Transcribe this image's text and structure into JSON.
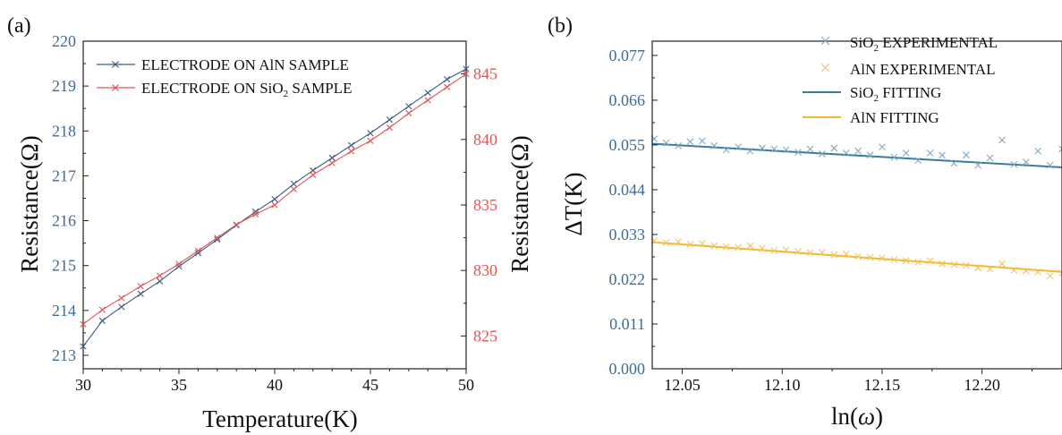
{
  "chart_data": [
    {
      "panel_label": "(a)",
      "type": "line",
      "xlabel": "Temperature(K)",
      "ylabel": "Resistance(Ω)",
      "y2label": "Resistance(Ω)",
      "xlim": [
        30,
        50
      ],
      "ylim": [
        212.7,
        220
      ],
      "y2lim": [
        822.5,
        847.5
      ],
      "xticks": [
        30,
        35,
        40,
        45,
        50
      ],
      "yticks": [
        213,
        214,
        215,
        216,
        217,
        218,
        219,
        220
      ],
      "y2ticks": [
        825,
        830,
        835,
        840,
        845
      ],
      "legend_position": "top-left",
      "series": [
        {
          "name": "ELECTRODE ON AlN SAMPLE",
          "axis": "left",
          "color": "#3d5a80",
          "x": [
            30,
            31,
            32,
            33,
            34,
            35,
            36,
            37,
            38,
            39,
            40,
            41,
            42,
            43,
            44,
            45,
            46,
            47,
            48,
            49,
            50
          ],
          "y": [
            213.2,
            213.77,
            214.08,
            214.37,
            214.65,
            214.98,
            215.28,
            215.58,
            215.9,
            216.2,
            216.48,
            216.82,
            217.12,
            217.4,
            217.68,
            217.95,
            218.25,
            218.55,
            218.85,
            219.15,
            219.38
          ]
        },
        {
          "name": "ELECTRODE ON SiO2 SAMPLE",
          "axis": "right",
          "color": "#e05555",
          "x": [
            30,
            31,
            32,
            33,
            34,
            35,
            36,
            37,
            38,
            39,
            40,
            41,
            42,
            43,
            44,
            45,
            46,
            47,
            48,
            49,
            50
          ],
          "y": [
            825.9,
            827.0,
            827.9,
            828.8,
            829.6,
            830.5,
            831.5,
            832.5,
            833.5,
            834.3,
            835.0,
            836.2,
            837.3,
            838.2,
            839.1,
            839.9,
            840.9,
            842.0,
            843.0,
            844.0,
            845.0
          ]
        }
      ]
    },
    {
      "panel_label": "(b)",
      "type": "scatter",
      "xlabel": "ln(ω)",
      "ylabel": "ΔT(K)",
      "xlim": [
        12.035,
        12.24
      ],
      "ylim": [
        0,
        0.0805
      ],
      "xticks": [
        "12.05",
        "12.10",
        "12.15",
        "12.20"
      ],
      "yticks": [
        "0.000",
        "0.011",
        "0.022",
        "0.033",
        "0.044",
        "0.055",
        "0.066",
        "0.077"
      ],
      "legend_position": "top-right",
      "series": [
        {
          "name": "SiO2 EXPERIMENTAL",
          "kind": "markers",
          "color": "#7fa8c4",
          "x": [
            12.036,
            12.042,
            12.048,
            12.054,
            12.06,
            12.066,
            12.072,
            12.078,
            12.084,
            12.09,
            12.096,
            12.102,
            12.108,
            12.114,
            12.12,
            12.126,
            12.132,
            12.138,
            12.144,
            12.15,
            12.156,
            12.162,
            12.168,
            12.174,
            12.18,
            12.186,
            12.192,
            12.198,
            12.204,
            12.21,
            12.216,
            12.222,
            12.228,
            12.234,
            12.24
          ],
          "y": [
            0.0565,
            0.0555,
            0.0548,
            0.0558,
            0.056,
            0.0548,
            0.0538,
            0.0545,
            0.0535,
            0.0542,
            0.054,
            0.0538,
            0.0532,
            0.054,
            0.0528,
            0.0542,
            0.053,
            0.0535,
            0.0525,
            0.0545,
            0.052,
            0.053,
            0.0512,
            0.053,
            0.0525,
            0.0505,
            0.0525,
            0.05,
            0.0518,
            0.0562,
            0.0502,
            0.0508,
            0.0535,
            0.05,
            0.054
          ]
        },
        {
          "name": "AlN EXPERIMENTAL",
          "kind": "markers",
          "color": "#f7c35a",
          "x": [
            12.036,
            12.042,
            12.048,
            12.054,
            12.06,
            12.066,
            12.072,
            12.078,
            12.084,
            12.09,
            12.096,
            12.102,
            12.108,
            12.114,
            12.12,
            12.126,
            12.132,
            12.138,
            12.144,
            12.15,
            12.156,
            12.162,
            12.168,
            12.174,
            12.18,
            12.186,
            12.192,
            12.198,
            12.204,
            12.21,
            12.216,
            12.222,
            12.228,
            12.234,
            12.24
          ],
          "y": [
            0.0315,
            0.031,
            0.0312,
            0.0306,
            0.0308,
            0.0302,
            0.03,
            0.0298,
            0.0302,
            0.0296,
            0.029,
            0.0292,
            0.0288,
            0.0285,
            0.0286,
            0.028,
            0.0282,
            0.0276,
            0.0274,
            0.0272,
            0.0268,
            0.0266,
            0.0262,
            0.0265,
            0.0258,
            0.0256,
            0.0254,
            0.0248,
            0.0245,
            0.0258,
            0.0242,
            0.024,
            0.0238,
            0.0228,
            0.0235
          ]
        },
        {
          "name": "SiO2 FITTING",
          "kind": "line",
          "color": "#3a7ca0",
          "x": [
            12.035,
            12.24
          ],
          "y": [
            0.0553,
            0.0495
          ]
        },
        {
          "name": "AlN FITTING",
          "kind": "line",
          "color": "#f5b633",
          "x": [
            12.035,
            12.24
          ],
          "y": [
            0.0311,
            0.0238
          ]
        }
      ]
    }
  ]
}
